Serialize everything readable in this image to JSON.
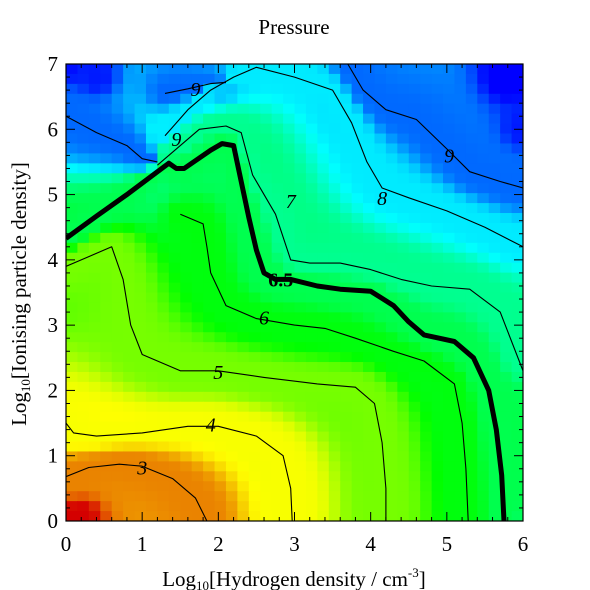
{
  "chart_data": {
    "type": "heatmap",
    "title": "Pressure",
    "xlabel_main": "Log",
    "xlabel_sub": "10",
    "xlabel_rest": "[Hydrogen density / cm",
    "xlabel_sup": "-3",
    "xlabel_close": "]",
    "ylabel_main": "Log",
    "ylabel_sub": "10",
    "ylabel_rest": "[Ionising particle density]",
    "xlim": [
      0,
      6
    ],
    "ylim": [
      0,
      7
    ],
    "xticks": [
      "0",
      "1",
      "2",
      "3",
      "4",
      "5",
      "6"
    ],
    "yticks": [
      "0",
      "1",
      "2",
      "3",
      "4",
      "5",
      "6",
      "7"
    ],
    "colormap": [
      "#d40000",
      "#ffff00",
      "#00ff00",
      "#00ffff",
      "#0000ff"
    ],
    "color_range": [
      2.0,
      9.8
    ],
    "contours": [
      {
        "level": 3,
        "label": "3",
        "bold": false,
        "points": [
          [
            0.0,
            0.68
          ],
          [
            0.3,
            0.82
          ],
          [
            0.7,
            0.87
          ],
          [
            1.0,
            0.84
          ],
          [
            1.4,
            0.65
          ],
          [
            1.7,
            0.35
          ],
          [
            1.85,
            0.0
          ]
        ],
        "label_pos": [
          1.0,
          0.82
        ]
      },
      {
        "level": 4,
        "label": "4",
        "bold": false,
        "points": [
          [
            0.0,
            1.5
          ],
          [
            0.1,
            1.35
          ],
          [
            0.4,
            1.3
          ],
          [
            1.0,
            1.35
          ],
          [
            1.6,
            1.45
          ],
          [
            2.0,
            1.45
          ],
          [
            2.5,
            1.3
          ],
          [
            2.85,
            1.0
          ],
          [
            2.95,
            0.5
          ],
          [
            2.97,
            0.0
          ]
        ],
        "label_pos": [
          1.9,
          1.48
        ]
      },
      {
        "level": 5,
        "label": "5",
        "bold": false,
        "points": [
          [
            0.0,
            3.9
          ],
          [
            0.3,
            4.05
          ],
          [
            0.6,
            4.2
          ],
          [
            0.75,
            3.7
          ],
          [
            0.85,
            3.0
          ],
          [
            1.0,
            2.55
          ],
          [
            1.5,
            2.3
          ],
          [
            2.0,
            2.3
          ],
          [
            2.6,
            2.2
          ],
          [
            3.3,
            2.1
          ],
          [
            3.8,
            2.05
          ],
          [
            4.05,
            1.8
          ],
          [
            4.15,
            1.2
          ],
          [
            4.2,
            0.5
          ],
          [
            4.2,
            0.0
          ]
        ],
        "label_pos": [
          2.0,
          2.28
        ]
      },
      {
        "level": 6,
        "label": "6",
        "bold": false,
        "points": [
          [
            1.5,
            4.7
          ],
          [
            1.8,
            4.55
          ],
          [
            1.85,
            4.2
          ],
          [
            1.9,
            3.8
          ],
          [
            2.1,
            3.3
          ],
          [
            2.5,
            3.1
          ],
          [
            3.0,
            3.0
          ],
          [
            3.4,
            2.95
          ],
          [
            3.8,
            2.8
          ],
          [
            4.3,
            2.6
          ],
          [
            4.7,
            2.45
          ],
          [
            5.1,
            2.1
          ],
          [
            5.2,
            1.5
          ],
          [
            5.25,
            0.8
          ],
          [
            5.28,
            0.0
          ]
        ],
        "label_pos": [
          2.6,
          3.12
        ]
      },
      {
        "level": 6.5,
        "label": "6.5",
        "bold": true,
        "points": [
          [
            0.0,
            4.33
          ],
          [
            0.4,
            4.67
          ],
          [
            0.8,
            5.0
          ],
          [
            1.2,
            5.35
          ],
          [
            1.35,
            5.48
          ],
          [
            1.45,
            5.4
          ],
          [
            1.55,
            5.4
          ],
          [
            1.9,
            5.68
          ],
          [
            2.05,
            5.78
          ],
          [
            2.2,
            5.75
          ],
          [
            2.3,
            5.2
          ],
          [
            2.4,
            4.65
          ],
          [
            2.5,
            4.15
          ],
          [
            2.6,
            3.8
          ],
          [
            2.75,
            3.7
          ],
          [
            2.95,
            3.7
          ],
          [
            3.3,
            3.6
          ],
          [
            3.6,
            3.55
          ],
          [
            4.0,
            3.52
          ],
          [
            4.3,
            3.3
          ],
          [
            4.5,
            3.05
          ],
          [
            4.7,
            2.85
          ],
          [
            4.9,
            2.8
          ],
          [
            5.1,
            2.75
          ],
          [
            5.35,
            2.5
          ],
          [
            5.55,
            2.0
          ],
          [
            5.65,
            1.4
          ],
          [
            5.72,
            0.7
          ],
          [
            5.75,
            0.0
          ]
        ],
        "label_pos": [
          2.82,
          3.7
        ]
      },
      {
        "level": 7,
        "label": "7",
        "bold": false,
        "points": [
          [
            1.2,
            5.45
          ],
          [
            1.5,
            5.75
          ],
          [
            1.75,
            6.0
          ],
          [
            2.1,
            6.05
          ],
          [
            2.3,
            5.95
          ],
          [
            2.45,
            5.3
          ],
          [
            2.75,
            4.7
          ],
          [
            2.95,
            4.0
          ],
          [
            3.2,
            3.95
          ],
          [
            3.6,
            3.95
          ],
          [
            4.0,
            3.85
          ],
          [
            4.4,
            3.7
          ],
          [
            4.8,
            3.6
          ],
          [
            5.3,
            3.55
          ],
          [
            5.7,
            3.2
          ],
          [
            6.0,
            2.3
          ]
        ],
        "label_pos": [
          2.95,
          4.9
        ]
      },
      {
        "level": 8,
        "label": "8",
        "bold": false,
        "points": [
          [
            1.3,
            5.9
          ],
          [
            1.6,
            6.3
          ],
          [
            1.9,
            6.6
          ],
          [
            2.2,
            6.8
          ],
          [
            2.5,
            6.95
          ],
          [
            3.0,
            6.8
          ],
          [
            3.5,
            6.6
          ],
          [
            3.75,
            6.1
          ],
          [
            3.95,
            5.5
          ],
          [
            4.15,
            5.1
          ],
          [
            4.5,
            4.95
          ],
          [
            5.0,
            4.75
          ],
          [
            5.5,
            4.5
          ],
          [
            6.0,
            4.2
          ]
        ],
        "label_pos": [
          4.15,
          4.95
        ]
      },
      {
        "level": 9,
        "label": "9",
        "bold": false,
        "points": [
          [
            0.0,
            6.2
          ],
          [
            0.4,
            5.95
          ],
          [
            0.8,
            5.75
          ],
          [
            1.0,
            5.55
          ],
          [
            1.2,
            5.5
          ]
        ],
        "label_pos": [
          1.45,
          5.85
        ]
      },
      {
        "level": 9,
        "label": "9",
        "bold": false,
        "points": [
          [
            1.3,
            6.55
          ],
          [
            1.6,
            6.62
          ],
          [
            1.9,
            6.7
          ],
          [
            2.1,
            6.72
          ]
        ],
        "label_pos": [
          1.7,
          6.62
        ]
      },
      {
        "level": 9,
        "label": "9",
        "bold": false,
        "points": [
          [
            3.7,
            7.0
          ],
          [
            3.9,
            6.6
          ],
          [
            4.2,
            6.3
          ],
          [
            4.6,
            6.15
          ],
          [
            5.0,
            5.7
          ],
          [
            5.3,
            5.35
          ],
          [
            5.7,
            5.2
          ],
          [
            6.0,
            5.1
          ]
        ],
        "label_pos": [
          5.03,
          5.6
        ]
      }
    ]
  }
}
